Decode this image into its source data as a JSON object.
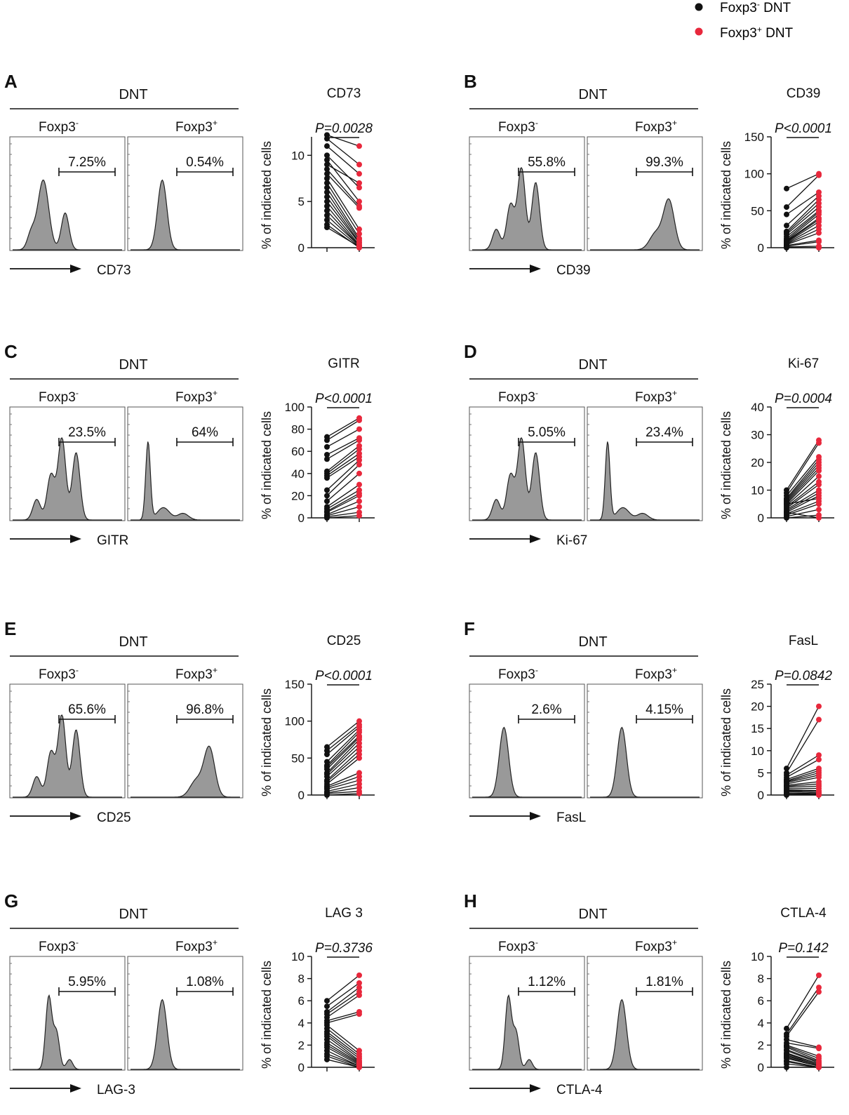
{
  "legend": {
    "items": [
      {
        "label_pre": "Foxp3",
        "sup": "-",
        "label_post": " DNT",
        "color": "#111111"
      },
      {
        "label_pre": "Foxp3",
        "sup": "+",
        "label_post": " DNT",
        "color": "#e8283c"
      }
    ]
  },
  "shared": {
    "dnt_label": "DNT",
    "neg_label": "Foxp3",
    "neg_sup": "-",
    "pos_label": "Foxp3",
    "pos_sup": "+",
    "ylabel": "% of indicated cells",
    "neg_color": "#111111",
    "pos_color": "#e8283c",
    "hist_fill": "#999999"
  },
  "chart_data": [
    {
      "panel": "A",
      "marker": "CD73",
      "type": "scatter",
      "neg_gate": "7.25%",
      "pos_gate": "0.54%",
      "neg_shape": "bimodal",
      "pos_shape": "single",
      "p_value": "P=0.0028",
      "ylim": [
        0,
        12
      ],
      "yticks": [
        0,
        5,
        10
      ],
      "pairs": [
        [
          12.2,
          11.0
        ],
        [
          11.8,
          9.0
        ],
        [
          11.0,
          8.0
        ],
        [
          10.0,
          6.5
        ],
        [
          9.0,
          7.0
        ],
        [
          8.5,
          4.5
        ],
        [
          8.0,
          4.3
        ],
        [
          7.5,
          2.0
        ],
        [
          7.0,
          1.5
        ],
        [
          6.5,
          1.0
        ],
        [
          6.0,
          0.8
        ],
        [
          5.5,
          0.6
        ],
        [
          5.0,
          0.5
        ],
        [
          4.5,
          0.3
        ],
        [
          4.0,
          0.2
        ],
        [
          3.0,
          0.1
        ],
        [
          2.5,
          0.0
        ],
        [
          2.2,
          0.1
        ],
        [
          9.5,
          5.0
        ],
        [
          3.5,
          0.2
        ]
      ]
    },
    {
      "panel": "B",
      "marker": "CD39",
      "type": "scatter",
      "neg_gate": "55.8%",
      "pos_gate": "99.3%",
      "neg_shape": "multi",
      "pos_shape": "late",
      "p_value": "P<0.0001",
      "ylim": [
        0,
        150
      ],
      "yticks": [
        0,
        50,
        100,
        150
      ],
      "pairs": [
        [
          80,
          100
        ],
        [
          55,
          98
        ],
        [
          45,
          75
        ],
        [
          30,
          70
        ],
        [
          22,
          65
        ],
        [
          20,
          60
        ],
        [
          18,
          55
        ],
        [
          15,
          50
        ],
        [
          12,
          48
        ],
        [
          10,
          45
        ],
        [
          9,
          40
        ],
        [
          8,
          38
        ],
        [
          6,
          30
        ],
        [
          5,
          25
        ],
        [
          4,
          20
        ],
        [
          3,
          10
        ],
        [
          2,
          8
        ],
        [
          1,
          2
        ],
        [
          0,
          0
        ],
        [
          7,
          35
        ]
      ]
    },
    {
      "panel": "C",
      "marker": "GITR",
      "type": "scatter",
      "neg_gate": "23.5%",
      "pos_gate": "64%",
      "neg_shape": "multi",
      "pos_shape": "early",
      "p_value": "P<0.0001",
      "ylim": [
        0,
        100
      ],
      "yticks": [
        0,
        20,
        40,
        60,
        80,
        100
      ],
      "pairs": [
        [
          73,
          90
        ],
        [
          70,
          88
        ],
        [
          64,
          80
        ],
        [
          57,
          72
        ],
        [
          53,
          70
        ],
        [
          42,
          65
        ],
        [
          40,
          62
        ],
        [
          38,
          58
        ],
        [
          36,
          55
        ],
        [
          25,
          52
        ],
        [
          20,
          48
        ],
        [
          15,
          40
        ],
        [
          10,
          30
        ],
        [
          8,
          25
        ],
        [
          6,
          22
        ],
        [
          5,
          20
        ],
        [
          3,
          15
        ],
        [
          2,
          10
        ],
        [
          1,
          5
        ],
        [
          0,
          2
        ]
      ]
    },
    {
      "panel": "D",
      "marker": "Ki-67",
      "type": "scatter",
      "neg_gate": "5.05%",
      "pos_gate": "23.4%",
      "neg_shape": "multi",
      "pos_shape": "early",
      "p_value": "P=0.0004",
      "ylim": [
        0,
        40
      ],
      "yticks": [
        0,
        10,
        20,
        30,
        40
      ],
      "pairs": [
        [
          10,
          28
        ],
        [
          9,
          27
        ],
        [
          8,
          22
        ],
        [
          7,
          21
        ],
        [
          6.5,
          20
        ],
        [
          6,
          19
        ],
        [
          5.5,
          18
        ],
        [
          5,
          17
        ],
        [
          4.5,
          15
        ],
        [
          4,
          13
        ],
        [
          3.5,
          12
        ],
        [
          3,
          10
        ],
        [
          2.5,
          9
        ],
        [
          2,
          8
        ],
        [
          1.5,
          6
        ],
        [
          1,
          5
        ],
        [
          0.5,
          3
        ],
        [
          0,
          1
        ],
        [
          2,
          0
        ],
        [
          5,
          7
        ]
      ]
    },
    {
      "panel": "E",
      "marker": "CD25",
      "type": "scatter",
      "neg_gate": "65.6%",
      "pos_gate": "96.8%",
      "neg_shape": "multi",
      "pos_shape": "late",
      "p_value": "P<0.0001",
      "ylim": [
        0,
        150
      ],
      "yticks": [
        0,
        50,
        100,
        150
      ],
      "pairs": [
        [
          65,
          100
        ],
        [
          60,
          95
        ],
        [
          55,
          92
        ],
        [
          45,
          88
        ],
        [
          40,
          85
        ],
        [
          38,
          80
        ],
        [
          35,
          78
        ],
        [
          30,
          75
        ],
        [
          28,
          70
        ],
        [
          25,
          65
        ],
        [
          20,
          60
        ],
        [
          18,
          55
        ],
        [
          15,
          50
        ],
        [
          12,
          30
        ],
        [
          10,
          25
        ],
        [
          8,
          20
        ],
        [
          5,
          15
        ],
        [
          3,
          10
        ],
        [
          2,
          5
        ],
        [
          0,
          2
        ]
      ]
    },
    {
      "panel": "F",
      "marker": "FasL",
      "type": "scatter",
      "neg_gate": "2.6%",
      "pos_gate": "4.15%",
      "neg_shape": "single",
      "pos_shape": "single",
      "p_value": "P=0.0842",
      "ylim": [
        0,
        25
      ],
      "yticks": [
        0,
        5,
        10,
        15,
        20,
        25
      ],
      "pairs": [
        [
          6,
          20
        ],
        [
          5,
          17
        ],
        [
          4.5,
          9
        ],
        [
          4,
          8
        ],
        [
          3.5,
          6
        ],
        [
          3.2,
          5.5
        ],
        [
          3,
          5
        ],
        [
          2.8,
          4.5
        ],
        [
          2.5,
          4
        ],
        [
          2.2,
          3
        ],
        [
          2,
          2.5
        ],
        [
          1.8,
          2
        ],
        [
          1.5,
          1.5
        ],
        [
          1.2,
          1
        ],
        [
          1,
          0.8
        ],
        [
          0.8,
          0.5
        ],
        [
          0.5,
          0.3
        ],
        [
          0.3,
          0.2
        ],
        [
          0.1,
          0.1
        ],
        [
          0,
          0
        ]
      ]
    },
    {
      "panel": "G",
      "marker": "LAG 3",
      "axis_label": "LAG-3",
      "type": "scatter",
      "neg_gate": "5.95%",
      "pos_gate": "1.08%",
      "neg_shape": "skewed",
      "pos_shape": "single",
      "p_value": "P=0.3736",
      "ylim": [
        0,
        10
      ],
      "yticks": [
        0,
        2,
        4,
        6,
        8,
        10
      ],
      "pairs": [
        [
          6,
          8.3
        ],
        [
          5.5,
          7.6
        ],
        [
          5,
          7.2
        ],
        [
          4.8,
          6.8
        ],
        [
          4.5,
          6.5
        ],
        [
          4.2,
          5.0
        ],
        [
          4,
          4.8
        ],
        [
          3.8,
          1.5
        ],
        [
          3.5,
          1.2
        ],
        [
          3.2,
          1.0
        ],
        [
          3,
          0.8
        ],
        [
          2.8,
          0.6
        ],
        [
          2.5,
          0.5
        ],
        [
          2.2,
          0.4
        ],
        [
          2,
          0.3
        ],
        [
          1.8,
          0.2
        ],
        [
          1.5,
          0.1
        ],
        [
          1.2,
          0.1
        ],
        [
          1,
          0
        ],
        [
          0.7,
          0
        ]
      ]
    },
    {
      "panel": "H",
      "marker": "CTLA-4",
      "type": "scatter",
      "neg_gate": "1.12%",
      "pos_gate": "1.81%",
      "neg_shape": "skewed",
      "pos_shape": "single",
      "p_value": "P=0.142",
      "ylim": [
        0,
        10
      ],
      "yticks": [
        0,
        2,
        4,
        6,
        8,
        10
      ],
      "pairs": [
        [
          3.5,
          8.3
        ],
        [
          3,
          7.2
        ],
        [
          2.8,
          6.8
        ],
        [
          2.5,
          1.8
        ],
        [
          2.2,
          1.7
        ],
        [
          2,
          1.0
        ],
        [
          1.9,
          0.8
        ],
        [
          1.8,
          0.6
        ],
        [
          1.6,
          0.5
        ],
        [
          1.5,
          0.4
        ],
        [
          1.3,
          0.3
        ],
        [
          1.2,
          0.3
        ],
        [
          1.1,
          0.2
        ],
        [
          1,
          0.2
        ],
        [
          0.9,
          0.1
        ],
        [
          0.8,
          0.1
        ],
        [
          0.6,
          0
        ],
        [
          0.5,
          0
        ],
        [
          0.3,
          0
        ],
        [
          0,
          0
        ]
      ]
    }
  ]
}
